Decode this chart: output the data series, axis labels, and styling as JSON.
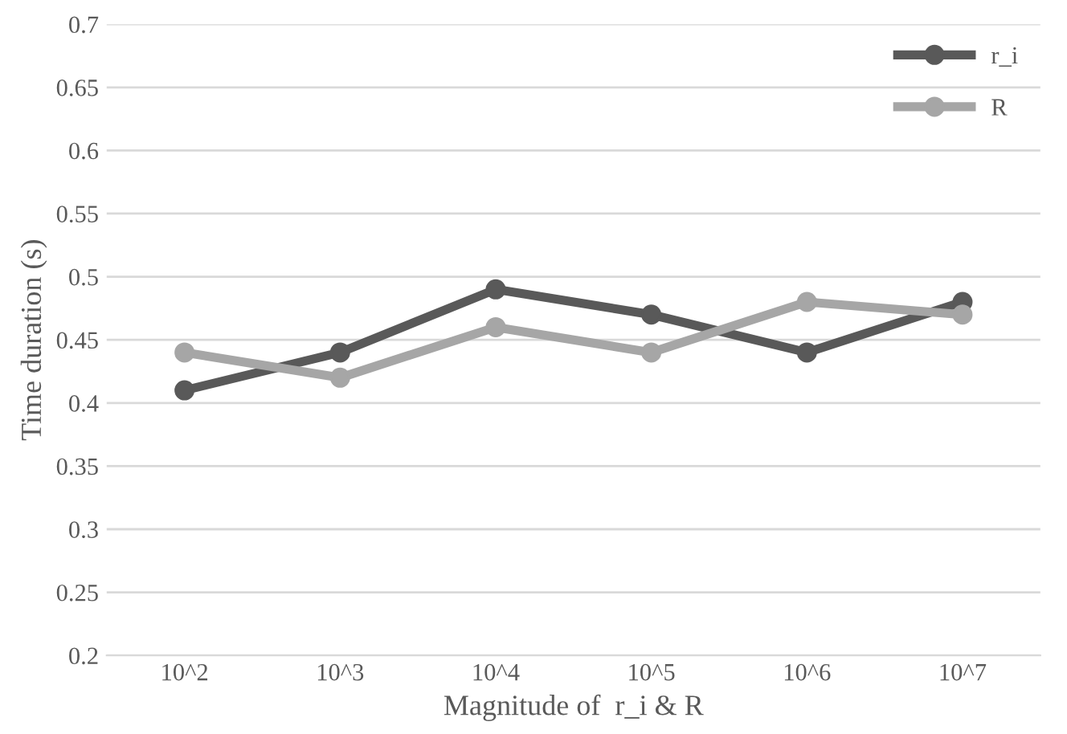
{
  "chart_data": {
    "type": "line",
    "xlabel": "Magnitude of  r_i & R",
    "ylabel": "Time duration (s)",
    "categories": [
      "10^2",
      "10^3",
      "10^4",
      "10^5",
      "10^6",
      "10^7"
    ],
    "series": [
      {
        "name": "r_i",
        "color": "#595959",
        "values": [
          0.41,
          0.44,
          0.49,
          0.47,
          0.44,
          0.48
        ]
      },
      {
        "name": "R",
        "color": "#a6a6a6",
        "values": [
          0.44,
          0.42,
          0.46,
          0.44,
          0.48,
          0.47
        ]
      }
    ],
    "ylim": [
      0.2,
      0.7
    ],
    "yticks": [
      0.2,
      0.25,
      0.3,
      0.35,
      0.4,
      0.45,
      0.5,
      0.55,
      0.6,
      0.65,
      0.7
    ],
    "grid": "y",
    "legend": "top right",
    "marker": "circle",
    "line_style": "solid"
  }
}
